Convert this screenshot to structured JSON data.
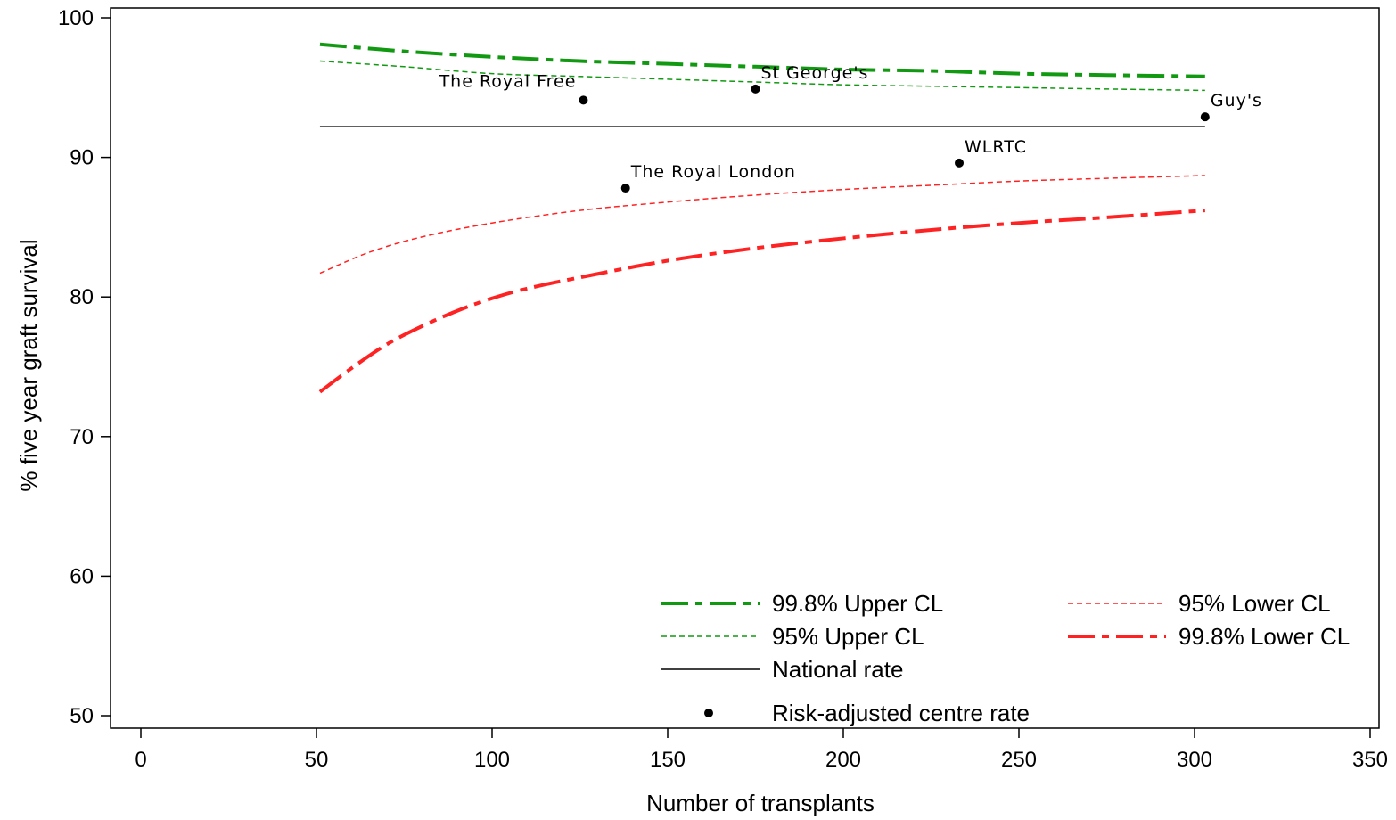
{
  "chart_data": {
    "type": "line",
    "xlabel": "Number of transplants",
    "ylabel": "% five year graft survival",
    "xlim": [
      0,
      350
    ],
    "ylim": [
      50,
      100
    ],
    "x_ticks": [
      0,
      50,
      100,
      150,
      200,
      250,
      300,
      350
    ],
    "y_ticks": [
      50,
      60,
      70,
      80,
      90,
      100
    ],
    "grid": false,
    "legend_position": "bottom-right",
    "series": [
      {
        "key": "upper998",
        "name": "99.8% Upper CL",
        "style": "dash-dot",
        "color": "#119911",
        "x": [
          51,
          75,
          100,
          125,
          150,
          175,
          200,
          225,
          250,
          275,
          303
        ],
        "y": [
          98.1,
          97.6,
          97.2,
          96.9,
          96.7,
          96.5,
          96.3,
          96.2,
          96.0,
          95.9,
          95.8
        ]
      },
      {
        "key": "upper95",
        "name": "95% Upper CL",
        "style": "dashed",
        "color": "#119911",
        "x": [
          51,
          75,
          100,
          125,
          150,
          175,
          200,
          225,
          250,
          275,
          303
        ],
        "y": [
          96.9,
          96.5,
          96.0,
          95.8,
          95.6,
          95.4,
          95.2,
          95.1,
          95.0,
          94.9,
          94.8
        ]
      },
      {
        "key": "national",
        "name": "National rate",
        "style": "solid",
        "color": "#000000",
        "x": [
          51,
          303
        ],
        "y": [
          92.2,
          92.2
        ]
      },
      {
        "key": "lower95",
        "name": "95% Lower CL",
        "style": "dashed",
        "color": "#ff2222",
        "x": [
          51,
          65,
          80,
          100,
          125,
          150,
          175,
          200,
          225,
          250,
          275,
          303
        ],
        "y": [
          81.7,
          83.2,
          84.3,
          85.3,
          86.2,
          86.8,
          87.3,
          87.7,
          88.0,
          88.3,
          88.5,
          88.7
        ]
      },
      {
        "key": "lower998",
        "name": "99.8% Lower CL",
        "style": "dash-dot",
        "color": "#ff2222",
        "x": [
          51,
          60,
          70,
          80,
          90,
          100,
          110,
          125,
          150,
          175,
          200,
          225,
          250,
          275,
          303
        ],
        "y": [
          73.2,
          74.9,
          76.6,
          77.9,
          79.0,
          79.9,
          80.6,
          81.4,
          82.6,
          83.5,
          84.2,
          84.8,
          85.3,
          85.7,
          86.2
        ]
      }
    ],
    "points": {
      "name": "Risk-adjusted centre rate",
      "color": "#000000",
      "data": [
        {
          "label": "The Royal Free",
          "x": 126,
          "y": 94.1,
          "label_pos": "upper-left"
        },
        {
          "label": "St George's",
          "x": 175,
          "y": 94.9,
          "label_pos": "upper-right"
        },
        {
          "label": "Guy's",
          "x": 303,
          "y": 92.9,
          "label_pos": "upper-right"
        },
        {
          "label": "The Royal London",
          "x": 138,
          "y": 87.8,
          "label_pos": "upper-right"
        },
        {
          "label": "WLRTC",
          "x": 233,
          "y": 89.6,
          "label_pos": "upper-right"
        }
      ]
    },
    "legend": [
      {
        "series": "upper998",
        "label": "99.8% Upper CL"
      },
      {
        "series": "upper95",
        "label": "95% Upper CL"
      },
      {
        "series": "national",
        "label": "National rate"
      },
      {
        "series": "points",
        "label": "Risk-adjusted centre rate"
      },
      {
        "series": "lower95",
        "label": "95% Lower CL"
      },
      {
        "series": "lower998",
        "label": "99.8% Lower CL"
      }
    ]
  }
}
